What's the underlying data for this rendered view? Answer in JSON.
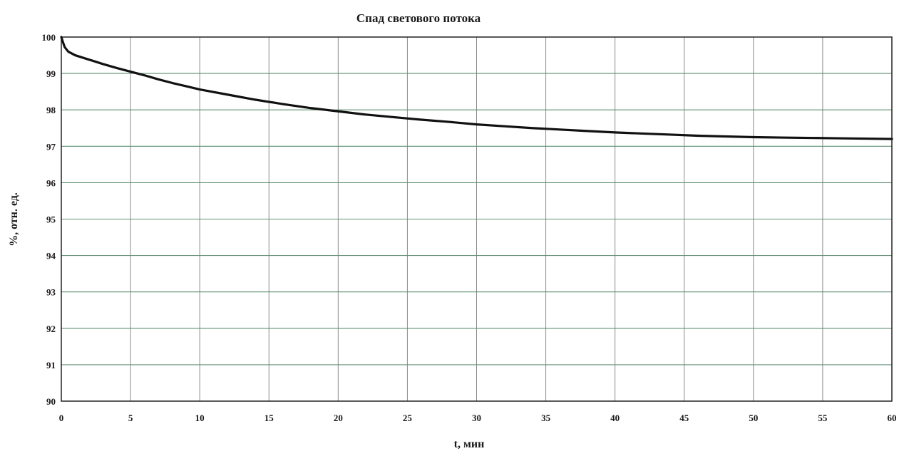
{
  "chart_data": {
    "type": "line",
    "title": "Спад светового потока",
    "xlabel": "t, мин",
    "ylabel": "%, отн. ед.",
    "xlim": [
      0,
      60
    ],
    "ylim": [
      90,
      100
    ],
    "x_ticks": [
      0,
      5,
      10,
      15,
      20,
      25,
      30,
      35,
      40,
      45,
      50,
      55,
      60
    ],
    "y_ticks": [
      90,
      91,
      92,
      93,
      94,
      95,
      96,
      97,
      98,
      99,
      100
    ],
    "x_tick_labels": [
      "0",
      "5",
      "10",
      "15",
      "20",
      "25",
      "30",
      "35",
      "40",
      "45",
      "50",
      "55",
      "60"
    ],
    "y_tick_labels": [
      "90",
      "91",
      "92",
      "93",
      "94",
      "95",
      "96",
      "97",
      "98",
      "99",
      "100"
    ],
    "grid": true,
    "legend": "none",
    "series": [
      {
        "color": "#111111",
        "x": [
          0,
          0.1,
          0.25,
          0.5,
          1,
          2,
          3,
          4,
          5,
          6,
          7,
          8,
          9,
          10,
          12,
          14,
          16,
          18,
          20,
          22,
          24,
          26,
          28,
          30,
          32,
          34,
          36,
          38,
          40,
          42,
          44,
          46,
          48,
          50,
          52,
          54,
          56,
          58,
          60
        ],
        "y": [
          100,
          99.88,
          99.72,
          99.6,
          99.5,
          99.38,
          99.26,
          99.15,
          99.05,
          98.95,
          98.84,
          98.74,
          98.65,
          98.56,
          98.42,
          98.28,
          98.16,
          98.05,
          97.96,
          97.87,
          97.8,
          97.73,
          97.67,
          97.6,
          97.55,
          97.5,
          97.46,
          97.42,
          97.38,
          97.35,
          97.32,
          97.29,
          97.27,
          97.25,
          97.24,
          97.23,
          97.22,
          97.21,
          97.2
        ]
      }
    ]
  }
}
